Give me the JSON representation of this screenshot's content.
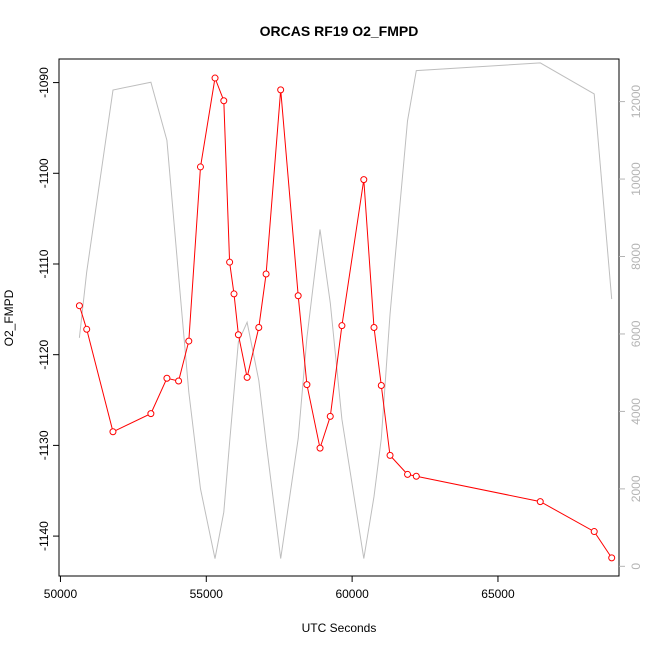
{
  "chart_data": {
    "type": "line",
    "title": "ORCAS RF19 O2_FMPD",
    "xlabel": "UTC Seconds",
    "ylabel": "O2_FMPD",
    "xlim": [
      49950,
      69150
    ],
    "ylim": [
      -1144.4,
      -1087.4
    ],
    "y2lim": [
      -250,
      13100
    ],
    "x_ticks": [
      50000,
      55000,
      60000,
      65000
    ],
    "y_ticks": [
      -1140,
      -1130,
      -1120,
      -1110,
      -1100,
      -1090
    ],
    "y2_ticks": [
      0,
      2000,
      4000,
      6000,
      8000,
      10000,
      12000
    ],
    "grid": false,
    "legend": "none",
    "series": [
      {
        "axis": "left",
        "color": "#ff0000",
        "marker": "open-circle",
        "x": [
          50650,
          50900,
          51800,
          53100,
          53650,
          54050,
          54400,
          54800,
          55300,
          55600,
          55800,
          55950,
          56100,
          56400,
          56800,
          57050,
          57550,
          58150,
          58450,
          58900,
          59250,
          59650,
          60400,
          60750,
          61000,
          61300,
          61900,
          62200,
          66450,
          68300,
          68900
        ],
        "y": [
          -1114.6,
          -1117.2,
          -1128.5,
          -1126.5,
          -1122.6,
          -1122.9,
          -1118.5,
          -1099.3,
          -1089.5,
          -1092.0,
          -1109.8,
          -1113.3,
          -1117.8,
          -1122.5,
          -1117.0,
          -1111.1,
          -1090.8,
          -1113.5,
          -1123.3,
          -1130.3,
          -1126.8,
          -1116.8,
          -1100.7,
          -1117.0,
          -1123.4,
          -1131.1,
          -1133.2,
          -1133.4,
          -1136.2,
          -1139.5,
          -1142.4
        ]
      },
      {
        "axis": "right",
        "color": "#bebebe",
        "marker": "none",
        "x": [
          50650,
          50900,
          51800,
          53100,
          53650,
          54050,
          54400,
          54800,
          55300,
          55600,
          55800,
          55950,
          56100,
          56400,
          56800,
          57050,
          57550,
          58150,
          58450,
          58900,
          59250,
          59650,
          60400,
          60750,
          61000,
          61300,
          61900,
          62200,
          66450,
          68300,
          68900
        ],
        "y": [
          5900,
          7600,
          12300,
          12500,
          11000,
          7500,
          4500,
          2000,
          200,
          1400,
          3200,
          4500,
          5800,
          6300,
          4800,
          3200,
          200,
          3300,
          5900,
          8700,
          6800,
          3800,
          200,
          1800,
          3300,
          6500,
          11500,
          12800,
          13000,
          12200,
          6900
        ]
      }
    ]
  }
}
